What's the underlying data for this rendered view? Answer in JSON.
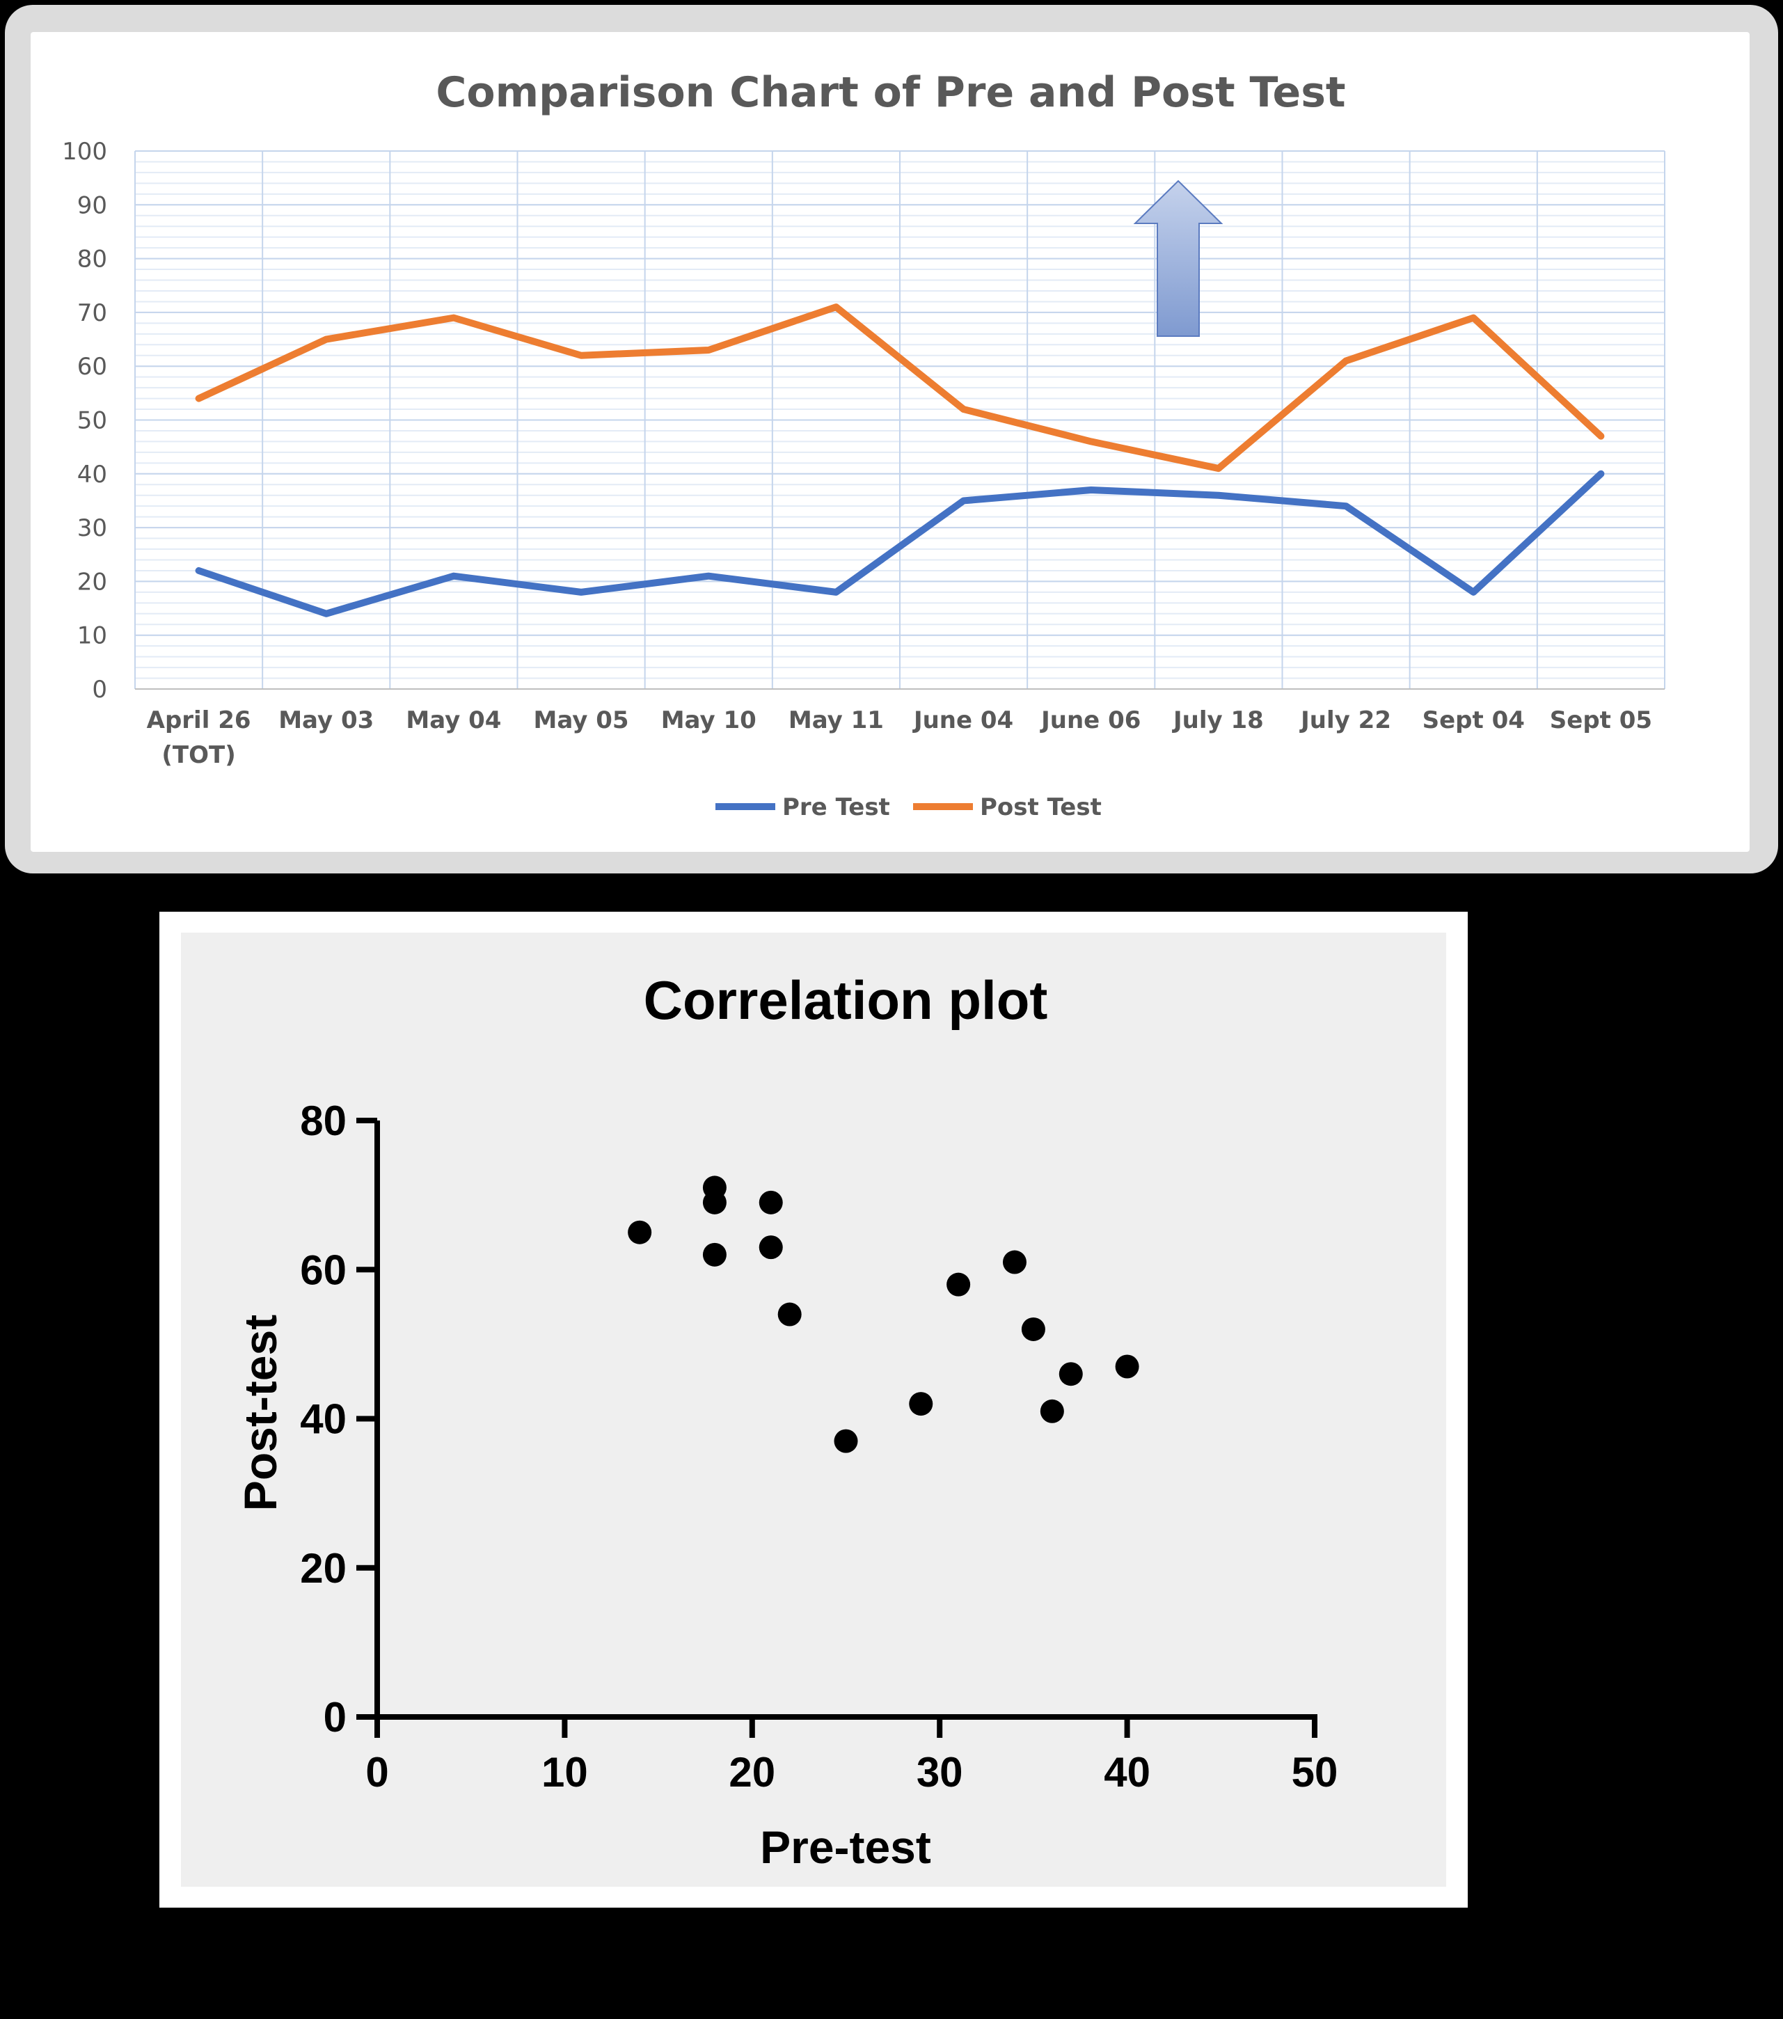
{
  "chart_data": [
    {
      "type": "line",
      "title": "Comparison Chart of Pre and Post Test",
      "categories": [
        "April 26 (TOT)",
        "May 03",
        "May 04",
        "May 05",
        "May 10",
        "May 11",
        "June 04",
        "June 06",
        "July 18",
        "July 22",
        "Sept 04",
        "Sept 05"
      ],
      "category_lines": [
        [
          "April 26",
          "(TOT)"
        ],
        [
          "May 03"
        ],
        [
          "May 04"
        ],
        [
          "May 05"
        ],
        [
          "May 10"
        ],
        [
          "May 11"
        ],
        [
          "June 04"
        ],
        [
          "June 06"
        ],
        [
          "July 18"
        ],
        [
          "July 22"
        ],
        [
          "Sept 04"
        ],
        [
          "Sept 05"
        ]
      ],
      "y_ticks": [
        "0",
        "10",
        "20",
        "30",
        "40",
        "50",
        "60",
        "70",
        "80",
        "90",
        "100"
      ],
      "ylim": [
        0,
        100
      ],
      "grid": true,
      "legend": "bottom",
      "series": [
        {
          "name": "Pre Test",
          "color": "#4472c4",
          "values": [
            22,
            14,
            21,
            18,
            21,
            18,
            35,
            37,
            36,
            34,
            18,
            40
          ]
        },
        {
          "name": "Post Test",
          "color": "#ed7d31",
          "values": [
            54,
            65,
            69,
            62,
            63,
            71,
            52,
            46,
            41,
            61,
            69,
            47
          ]
        }
      ],
      "annotation": "up-arrow"
    },
    {
      "type": "scatter",
      "title": "Correlation plot",
      "xlabel": "Pre-test",
      "ylabel": "Post-test",
      "xlim": [
        0,
        50
      ],
      "ylim": [
        0,
        80
      ],
      "x_ticks": [
        "0",
        "10",
        "20",
        "30",
        "40",
        "50"
      ],
      "y_ticks": [
        "0",
        "20",
        "40",
        "60",
        "80"
      ],
      "points": [
        {
          "x": 14,
          "y": 65
        },
        {
          "x": 18,
          "y": 71
        },
        {
          "x": 18,
          "y": 69
        },
        {
          "x": 18,
          "y": 62
        },
        {
          "x": 21,
          "y": 69
        },
        {
          "x": 21,
          "y": 63
        },
        {
          "x": 22,
          "y": 54
        },
        {
          "x": 25,
          "y": 37
        },
        {
          "x": 29,
          "y": 42
        },
        {
          "x": 31,
          "y": 58
        },
        {
          "x": 34,
          "y": 61
        },
        {
          "x": 35,
          "y": 52
        },
        {
          "x": 36,
          "y": 41
        },
        {
          "x": 37,
          "y": 46
        },
        {
          "x": 40,
          "y": 47
        }
      ]
    }
  ]
}
